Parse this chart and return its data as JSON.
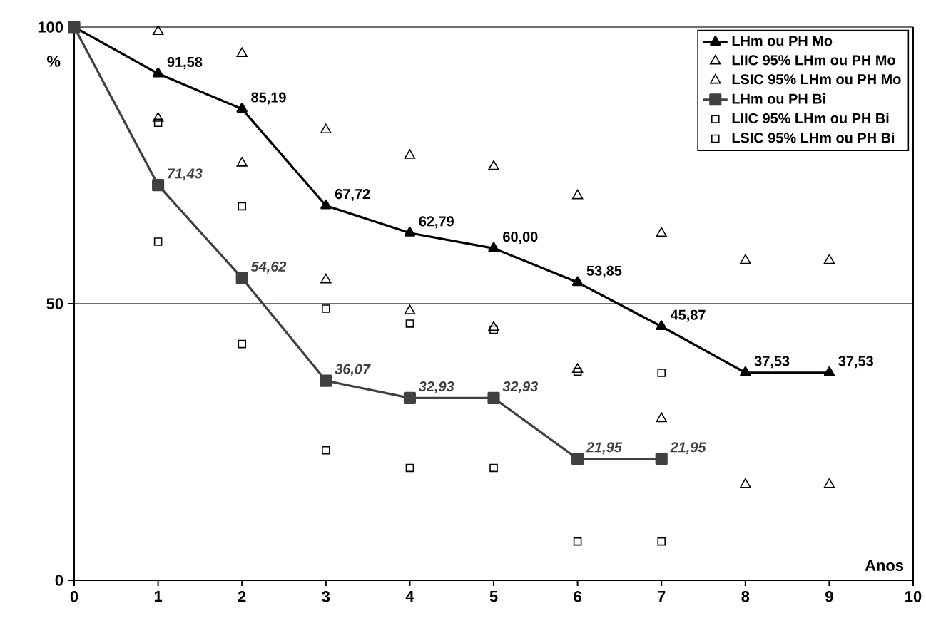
{
  "chart_data": {
    "type": "line",
    "ylabel": "%",
    "xlabel": "Anos",
    "xlim": [
      0,
      10
    ],
    "xticks": [
      0,
      1,
      2,
      3,
      4,
      5,
      6,
      7,
      8,
      9,
      10
    ],
    "ylim": [
      0,
      100
    ],
    "yticks": [
      0,
      50,
      100
    ],
    "grid": "y",
    "legend": "top right",
    "series": [
      {
        "name": "LHm ou PH Mo",
        "type": "line",
        "marker": "triangle",
        "color": "#000000",
        "x": [
          0,
          1,
          2,
          3,
          4,
          5,
          6,
          7,
          8,
          9
        ],
        "values": [
          100,
          91.58,
          85.19,
          67.72,
          62.79,
          60.0,
          53.85,
          45.87,
          37.53,
          37.53
        ],
        "value_labels": [
          null,
          "91,58",
          "85,19",
          "67,72",
          "62,79",
          "60,00",
          "53,85",
          "45,87",
          "37,53",
          "37,53"
        ]
      },
      {
        "name": "LIIC 95% LHm ou PH Mo",
        "type": "scatter",
        "marker": "triangle",
        "color": "#000000",
        "x": [
          1,
          2,
          3,
          4,
          5,
          6,
          7,
          8,
          9
        ],
        "values": [
          83.5,
          75.4,
          54.3,
          48.7,
          45.7,
          38.1,
          29.2,
          17.3,
          17.3
        ]
      },
      {
        "name": "LSIC 95% LHm ou PH Mo",
        "type": "scatter",
        "marker": "triangle",
        "color": "#000000",
        "x": [
          1,
          2,
          3,
          4,
          5,
          6,
          7,
          8,
          9
        ],
        "values": [
          99.2,
          95.2,
          81.4,
          76.8,
          74.8,
          69.5,
          62.7,
          57.8,
          57.8
        ]
      },
      {
        "name": "LHm ou PH Bi",
        "type": "line",
        "marker": "square",
        "color": "#404040",
        "x": [
          0,
          1,
          2,
          3,
          4,
          5,
          6,
          7
        ],
        "values": [
          100,
          71.43,
          54.62,
          36.07,
          32.93,
          32.93,
          21.95,
          21.95
        ],
        "value_labels": [
          null,
          "71,43",
          "54,62",
          "36,07",
          "32,93",
          "32,93",
          "21,95",
          "21,95"
        ]
      },
      {
        "name": "LIIC 95% LHm ou PH Bi",
        "type": "scatter",
        "marker": "square",
        "color": "#000000",
        "x": [
          1,
          2,
          3,
          4,
          5,
          6,
          7
        ],
        "values": [
          61.2,
          42.7,
          23.5,
          20.3,
          20.3,
          7.0,
          7.0
        ]
      },
      {
        "name": "LSIC 95% LHm ou PH Bi",
        "type": "scatter",
        "marker": "square",
        "color": "#000000",
        "x": [
          1,
          2,
          3,
          4,
          5,
          6,
          7
        ],
        "values": [
          82.7,
          67.6,
          49.1,
          46.4,
          45.3,
          37.7,
          37.5
        ]
      }
    ]
  }
}
